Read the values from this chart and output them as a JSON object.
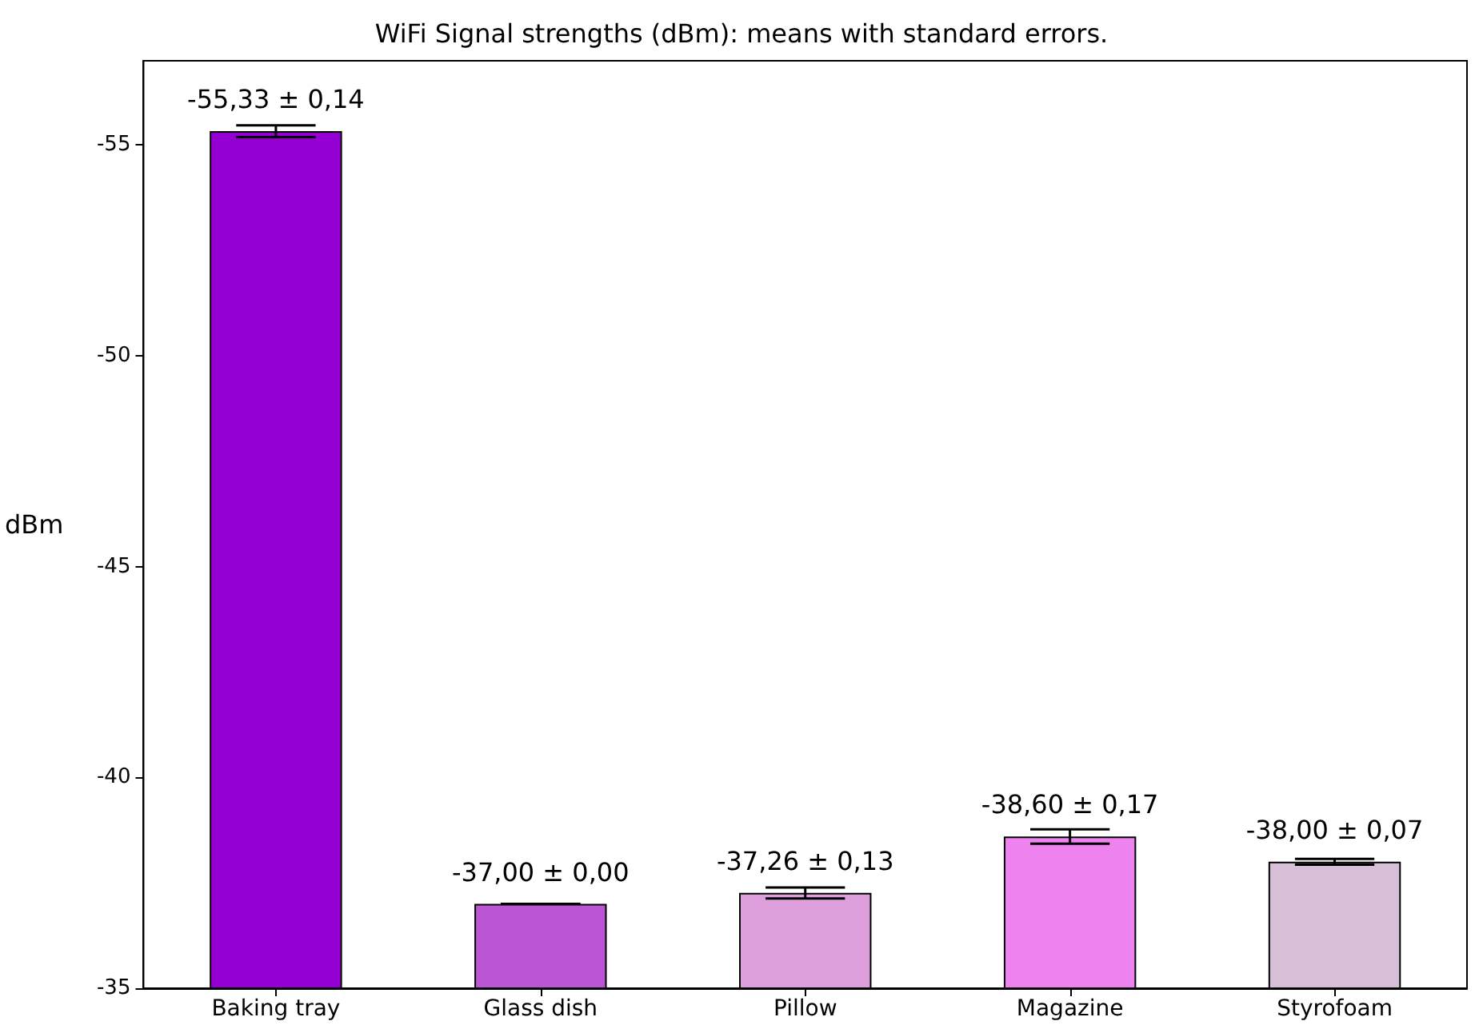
{
  "chart_data": {
    "type": "bar",
    "title": "WiFi Signal strengths (dBm): means with standard errors.",
    "ylabel": "dBm",
    "categories": [
      "Baking tray",
      "Glass dish",
      "Pillow",
      "Magazine",
      "Styrofoam"
    ],
    "values": [
      -55.33,
      -37.0,
      -37.26,
      -38.6,
      -38.0
    ],
    "colors": [
      "#9400d3",
      "#ba55d3",
      "#dda0dd",
      "#ee82ee",
      "#d8bfd8"
    ],
    "errors": [
      0.14,
      0.0,
      0.13,
      0.17,
      0.07
    ],
    "value_labels": [
      "-55,33 ± 0,14",
      "-37,00 ± 0,00",
      "-37,26 ± 0,13",
      "-38,60 ± 0,17",
      "-38,00 ± 0,07"
    ],
    "ylim": [
      -35,
      -57
    ],
    "yticks": [
      -55,
      -50,
      -45,
      -40,
      -35
    ],
    "grid": false
  }
}
